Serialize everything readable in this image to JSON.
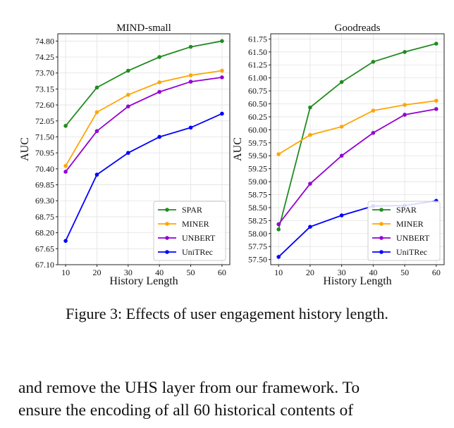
{
  "figure": {
    "caption": "Figure 3: Effects of user engagement history length.",
    "chart_data": [
      {
        "type": "line",
        "title": "MIND-small",
        "xlabel": "History Length",
        "ylabel": "AUC",
        "x": [
          10,
          20,
          30,
          40,
          50,
          60
        ],
        "xticks": [
          "10",
          "20",
          "30",
          "40",
          "50",
          "60"
        ],
        "yticks": [
          "67.10",
          "67.65",
          "68.20",
          "68.75",
          "69.30",
          "69.85",
          "70.40",
          "70.95",
          "71.50",
          "72.05",
          "72.60",
          "73.15",
          "73.70",
          "74.25",
          "74.80"
        ],
        "ylim": [
          67.1,
          75.05
        ],
        "grid": true,
        "legend_position": "lower-right",
        "series": [
          {
            "name": "SPAR",
            "color": "#228B22",
            "values": [
              71.88,
              73.2,
              73.78,
              74.25,
              74.6,
              74.8
            ]
          },
          {
            "name": "MINER",
            "color": "#FFA500",
            "values": [
              70.5,
              72.35,
              72.95,
              73.38,
              73.62,
              73.78
            ]
          },
          {
            "name": "UNBERT",
            "color": "#9400D3",
            "values": [
              70.3,
              71.7,
              72.55,
              73.05,
              73.4,
              73.55
            ]
          },
          {
            "name": "UniTRec",
            "color": "#0000FF",
            "values": [
              67.92,
              70.2,
              70.95,
              71.5,
              71.82,
              72.3
            ]
          }
        ]
      },
      {
        "type": "line",
        "title": "Goodreads",
        "xlabel": "History Length",
        "ylabel": "AUC",
        "x": [
          10,
          20,
          30,
          40,
          50,
          60
        ],
        "xticks": [
          "10",
          "20",
          "30",
          "40",
          "50",
          "60"
        ],
        "yticks": [
          "57.50",
          "57.75",
          "58.00",
          "58.25",
          "58.50",
          "58.75",
          "59.00",
          "59.25",
          "59.50",
          "59.75",
          "60.00",
          "60.25",
          "60.50",
          "60.75",
          "61.00",
          "61.25",
          "61.50",
          "61.75"
        ],
        "ylim": [
          57.4,
          61.85
        ],
        "grid": true,
        "legend_position": "lower-right",
        "series": [
          {
            "name": "SPAR",
            "color": "#228B22",
            "values": [
              58.08,
              60.43,
              60.92,
              61.31,
              61.5,
              61.66
            ]
          },
          {
            "name": "MINER",
            "color": "#FFA500",
            "values": [
              59.53,
              59.9,
              60.06,
              60.37,
              60.48,
              60.56
            ]
          },
          {
            "name": "UNBERT",
            "color": "#9400D3",
            "values": [
              58.18,
              58.96,
              59.5,
              59.94,
              60.29,
              60.4
            ]
          },
          {
            "name": "UniTRec",
            "color": "#0000FF",
            "values": [
              57.55,
              58.13,
              58.35,
              58.53,
              58.54,
              58.63
            ]
          }
        ]
      }
    ]
  },
  "body_text": [
    "and remove the UHS layer from our framework. To",
    "ensure the encoding of all 60 historical contents of"
  ]
}
